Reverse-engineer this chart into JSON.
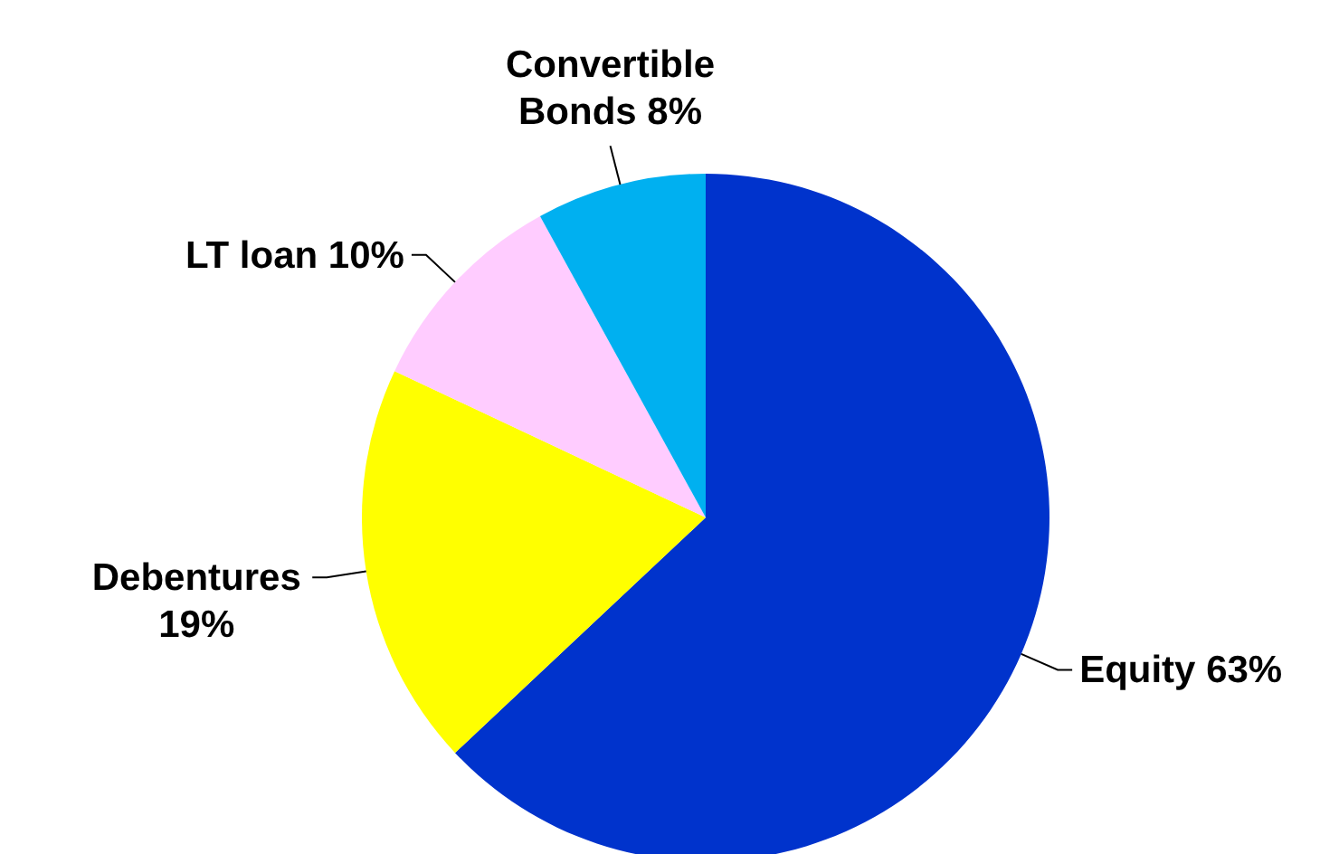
{
  "chart_data": {
    "type": "pie",
    "categories": [
      "Equity",
      "Debentures",
      "LT loan",
      "Convertible Bonds"
    ],
    "values": [
      63,
      19,
      10,
      8
    ],
    "colors": [
      "#0033cc",
      "#ffff00",
      "#ffccff",
      "#00b0f0"
    ],
    "value_labels": [
      "63%",
      "19%",
      "10%",
      "8%"
    ]
  }
}
